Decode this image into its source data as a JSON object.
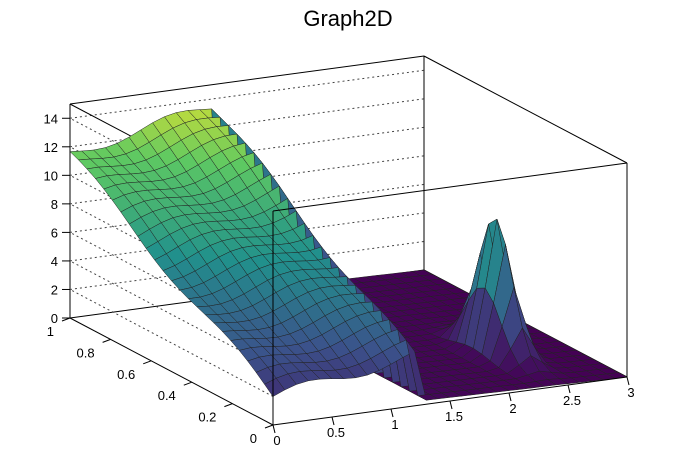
{
  "chart_data": {
    "type": "surface",
    "title": "Graph2D",
    "x_axis": {
      "range": [
        0,
        3
      ],
      "ticks": [
        "0",
        "0.5",
        "1",
        "1.5",
        "2",
        "2.5",
        "3"
      ]
    },
    "y_axis": {
      "range": [
        0,
        1
      ],
      "ticks": [
        "0",
        "0.2",
        "0.4",
        "0.6",
        "0.8",
        "1"
      ]
    },
    "z_axis": {
      "range": [
        0,
        15
      ],
      "ticks": [
        "0",
        "2",
        "4",
        "6",
        "8",
        "10",
        "12",
        "14"
      ]
    },
    "grid": true,
    "colormap": "viridis",
    "surface_description_values": {
      "z_at_corners": {
        "x0_y0": 2.0,
        "x0_y1": 11.5,
        "x1.2_y0": 3.5,
        "x1.2_y1": 13.5,
        "x3_y0": 0.0,
        "x3_y1": 0.0
      },
      "step_at_x": 1.2,
      "peak_near": {
        "x": 2.4,
        "y": 0.3,
        "z": 9.5
      }
    }
  }
}
